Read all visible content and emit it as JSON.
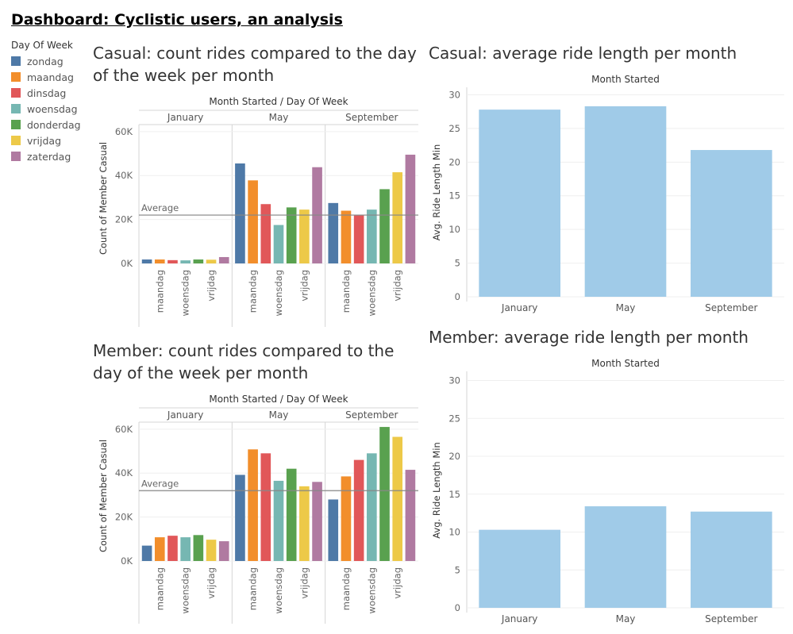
{
  "dashboard": {
    "title": "Dashboard: Cyclistic users, an analysis"
  },
  "legend": {
    "title": "Day Of Week",
    "items": [
      {
        "label": "zondag",
        "color": "#4e79a7"
      },
      {
        "label": "maandag",
        "color": "#f28e2b"
      },
      {
        "label": "dinsdag",
        "color": "#e15759"
      },
      {
        "label": "woensdag",
        "color": "#76b7b2"
      },
      {
        "label": "donderdag",
        "color": "#59a14f"
      },
      {
        "label": "vrijdag",
        "color": "#edc948"
      },
      {
        "label": "zaterdag",
        "color": "#b07aa1"
      }
    ]
  },
  "charts": {
    "casual_count": {
      "title": "Casual: count rides compared to the day of the week per month"
    },
    "casual_avg": {
      "title": "Casual: average ride length per month"
    },
    "member_count": {
      "title": "Member: count rides compared to the day of the week per month"
    },
    "member_avg": {
      "title": "Member: average ride length per month"
    }
  },
  "chart_data": [
    {
      "id": "casual_count",
      "type": "bar",
      "title": "Casual: count rides compared to the day of the week per month",
      "header": "Month Started  /  Day Of Week",
      "ylabel": "Count of Member Casual",
      "ylim": [
        0,
        65000
      ],
      "yticks": [
        0,
        20000,
        40000,
        60000
      ],
      "ytick_labels": [
        "0K",
        "20K",
        "40K",
        "60K"
      ],
      "groups": [
        "January",
        "May",
        "September"
      ],
      "categories": [
        "zondag",
        "maandag",
        "dinsdag",
        "woensdag",
        "donderdag",
        "vrijdag",
        "zaterdag"
      ],
      "shown_category_labels": [
        "maandag",
        "woensdag",
        "vrijdag"
      ],
      "values": [
        [
          1800,
          1800,
          1500,
          1400,
          1800,
          1700,
          2900
        ],
        [
          45500,
          37800,
          27000,
          17500,
          25500,
          24500,
          43800
        ],
        [
          27500,
          24000,
          22000,
          24500,
          33800,
          41500,
          49500
        ]
      ],
      "reference_line": {
        "label": "Average",
        "value": 22000
      },
      "grid": true
    },
    {
      "id": "casual_avg",
      "type": "bar",
      "title": "Casual: average ride length per month",
      "header": "Month Started",
      "ylabel": "Avg. Ride Length Min",
      "ylim": [
        0,
        31
      ],
      "yticks": [
        0,
        5,
        10,
        15,
        20,
        25,
        30
      ],
      "categories": [
        "January",
        "May",
        "September"
      ],
      "values": [
        27.8,
        28.3,
        21.8
      ],
      "color": "#a0cbe8",
      "grid": true
    },
    {
      "id": "member_count",
      "type": "bar",
      "title": "Member: count rides compared to the day of the week per month",
      "header": "Month Started  /  Day Of Week",
      "ylabel": "Count of Member Casual",
      "ylim": [
        0,
        65000
      ],
      "yticks": [
        0,
        20000,
        40000,
        60000
      ],
      "ytick_labels": [
        "0K",
        "20K",
        "40K",
        "60K"
      ],
      "groups": [
        "January",
        "May",
        "September"
      ],
      "categories": [
        "zondag",
        "maandag",
        "dinsdag",
        "woensdag",
        "donderdag",
        "vrijdag",
        "zaterdag"
      ],
      "shown_category_labels": [
        "maandag",
        "woensdag",
        "vrijdag"
      ],
      "values": [
        [
          7000,
          10800,
          11500,
          10800,
          11800,
          9700,
          9000
        ],
        [
          39200,
          50800,
          49000,
          36500,
          42000,
          34000,
          36000
        ],
        [
          28000,
          38500,
          46000,
          49000,
          61000,
          56500,
          41500
        ]
      ],
      "reference_line": {
        "label": "Average",
        "value": 32000
      },
      "grid": true
    },
    {
      "id": "member_avg",
      "type": "bar",
      "title": "Member: average ride length per month",
      "header": "Month Started",
      "ylabel": "Avg. Ride Length Min",
      "ylim": [
        0,
        31
      ],
      "yticks": [
        0,
        5,
        10,
        15,
        20,
        25,
        30
      ],
      "categories": [
        "January",
        "May",
        "September"
      ],
      "values": [
        10.3,
        13.4,
        12.7
      ],
      "color": "#a0cbe8",
      "grid": true
    }
  ]
}
